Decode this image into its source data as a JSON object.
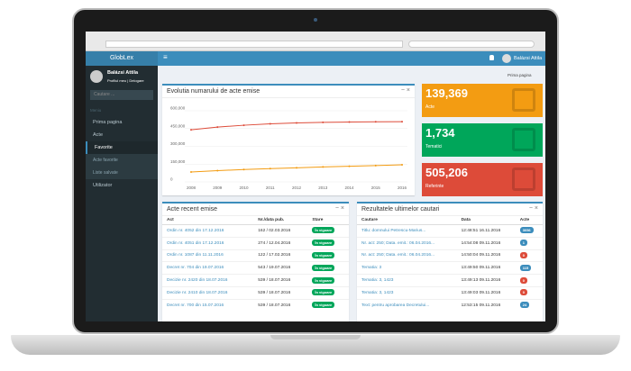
{
  "app": {
    "brand": "GlobLex",
    "user": "Balázsi Attila"
  },
  "sidebar": {
    "user": "Balázsi Attila",
    "user_links": "Profilul meu | Delogare",
    "search_placeholder": "Cautare ...",
    "menu_label": "Meniu",
    "items": [
      {
        "label": "Prima pagina"
      },
      {
        "label": "Acte"
      },
      {
        "label": "Favorite",
        "children": [
          "Acte favorite",
          "Liste salvate"
        ]
      },
      {
        "label": "Utilizator"
      }
    ]
  },
  "breadcrumb": "Prima pagina",
  "chart_data": {
    "type": "line",
    "title": "Evolutia numarului de acte emise",
    "x": [
      2008,
      2009,
      2010,
      2011,
      2012,
      2013,
      2014,
      2015,
      2016
    ],
    "xlim": [
      2008,
      2016
    ],
    "xticks": [
      2008,
      2009,
      2010,
      2011,
      2012,
      2013,
      2014,
      2015,
      2016
    ],
    "ylim": [
      0,
      600000
    ],
    "yticks": [
      0,
      {
        "value": 150000,
        "label": "150,000"
      },
      {
        "value": 300000,
        "label": "300,000"
      },
      {
        "value": 450000,
        "label": "450,000"
      },
      {
        "value": 600000,
        "label": "600,000"
      }
    ],
    "grid": true,
    "series": [
      {
        "color": "#dd4b39",
        "values": [
          440000,
          462000,
          478000,
          490000,
          497000,
          502000,
          505000,
          507000,
          508000
        ]
      },
      {
        "color": "#f39c12",
        "values": [
          84000,
          95000,
          104000,
          112000,
          119000,
          126000,
          132000,
          138000,
          144000
        ]
      }
    ]
  },
  "stats": [
    {
      "value": "139,369",
      "label": "Acte",
      "color": "#f39c12"
    },
    {
      "value": "1,734",
      "label": "Tematici",
      "color": "#00a65a"
    },
    {
      "value": "505,206",
      "label": "Referinte",
      "color": "#dd4b39"
    }
  ],
  "recent": {
    "title": "Acte recent emise",
    "columns": [
      "Act",
      "Nr./data pub.",
      "Stare"
    ],
    "rows": [
      [
        "Ordin nr. 4052 din 17.12.2016",
        "162 / 02.03.2016",
        "În vigoare"
      ],
      [
        "Ordin nr. 4051 din 17.12.2016",
        "274 / 12.04.2016",
        "În vigoare"
      ],
      [
        "Ordin nr. 1087 din 11.11.2016",
        "122 / 17.02.2016",
        "În vigoare"
      ],
      [
        "Decret nr. 704 din 19.07.2016",
        "543 / 19.07.2016",
        "În vigoare"
      ],
      [
        "Decizie nr. 2420 din 18.07.2016",
        "539 / 18.07.2016",
        "În vigoare"
      ],
      [
        "Decizie nr. 2410 din 18.07.2016",
        "539 / 18.07.2016",
        "În vigoare"
      ],
      [
        "Decret nr. 700 din 15.07.2016",
        "539 / 18.07.2016",
        "În vigoare"
      ]
    ]
  },
  "searches": {
    "title": "Rezultatele ultimelor cautari",
    "columns": [
      "Cautare",
      "Data",
      "Acte"
    ],
    "rows": [
      [
        "Titlu: domnului Petrescu-Marius...",
        "12:48:51 16.11.2016",
        "3056"
      ],
      [
        "Nr. act: 250; Data. emit.: 06.04.2016...",
        "14:54:08 09.11.2016",
        "1"
      ],
      [
        "Nr. act: 250; Data. emit.: 06.04.2016...",
        "14:50:04 09.11.2016",
        "0"
      ],
      [
        "Tematia: 3",
        "13:49:50 09.11.2016",
        "115"
      ],
      [
        "Tematia: 3, 1423",
        "13:49:13 09.11.2016",
        "0"
      ],
      [
        "Tematia: 3, 1423",
        "13:49:03 09.11.2016",
        "0"
      ],
      [
        "Text: pentru aprobarea Decretului...",
        "12:53:15 09.11.2016",
        "24"
      ]
    ],
    "badge_colors": [
      "#3c8dbc",
      "#3c8dbc",
      "#dd4b39",
      "#3c8dbc",
      "#dd4b39",
      "#dd4b39",
      "#3c8dbc"
    ]
  }
}
